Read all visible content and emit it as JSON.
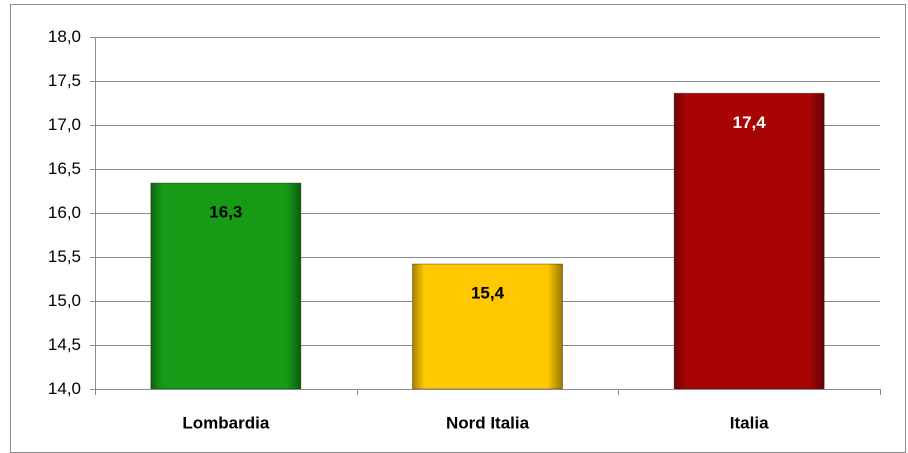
{
  "chart_data": {
    "type": "bar",
    "categories": [
      "Lombardia",
      "Nord Italia",
      "Italia"
    ],
    "values": [
      16.34,
      15.42,
      17.36
    ],
    "value_labels": [
      "16,3",
      "15,4",
      "17,4"
    ],
    "colors": [
      "#179b17",
      "#ffc800",
      "#a80404"
    ],
    "label_colors": [
      "#000000",
      "#000000",
      "#ffffff"
    ],
    "ylim": [
      14,
      18
    ],
    "yticks": [
      {
        "value": 14,
        "label": "14,0"
      },
      {
        "value": 14.5,
        "label": "14,5"
      },
      {
        "value": 15,
        "label": "15,0"
      },
      {
        "value": 15.5,
        "label": "15,5"
      },
      {
        "value": 16,
        "label": "16,0"
      },
      {
        "value": 16.5,
        "label": "16,5"
      },
      {
        "value": 17,
        "label": "17,0"
      },
      {
        "value": 17.5,
        "label": "17,5"
      },
      {
        "value": 18,
        "label": "18,0"
      }
    ],
    "grid": true
  }
}
